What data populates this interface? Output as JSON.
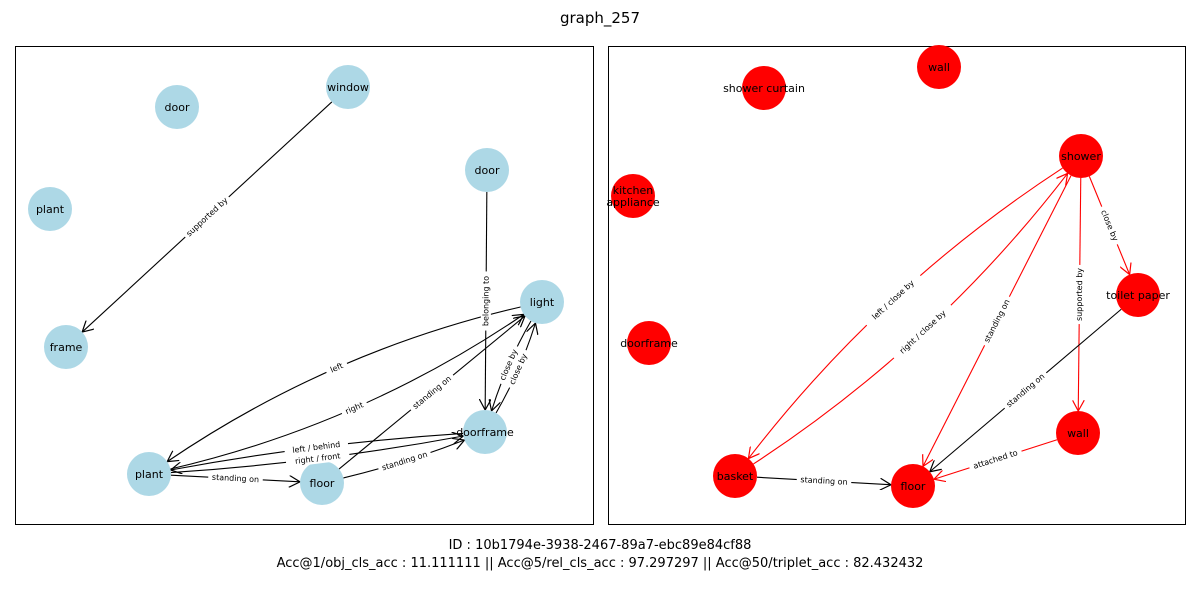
{
  "title": "graph_257",
  "id_line": "ID : 10b1794e-3938-2467-89a7-ebc89e84cf88",
  "acc_line": "Acc@1/obj_cls_acc : 11.111111 || Acc@5/rel_cls_acc : 97.297297 || Acc@50/triplet_acc : 82.432432",
  "colors": {
    "left_node": "#add8e6",
    "right_node": "#ff0000",
    "left_edge": "#000000",
    "right_edge": "#ff0000",
    "right_edge_alt": "#000000"
  },
  "panels": [
    {
      "nodes": [
        {
          "id": "l_door1",
          "label": "door"
        },
        {
          "id": "l_window",
          "label": "window"
        },
        {
          "id": "l_door2",
          "label": "door"
        },
        {
          "id": "l_plant1",
          "label": "plant"
        },
        {
          "id": "l_light",
          "label": "light"
        },
        {
          "id": "l_frame",
          "label": "frame"
        },
        {
          "id": "l_doorframe",
          "label": "doorframe"
        },
        {
          "id": "l_plant2",
          "label": "plant"
        },
        {
          "id": "l_floor",
          "label": "floor"
        }
      ],
      "edges": [
        {
          "from": "l_window",
          "to": "l_frame",
          "label": "supported by"
        },
        {
          "from": "l_door2",
          "to": "l_doorframe",
          "label": "belonging to"
        },
        {
          "from": "l_light",
          "to": "l_plant2",
          "label": "left"
        },
        {
          "from": "l_plant2",
          "to": "l_light",
          "label": "right"
        },
        {
          "from": "l_floor",
          "to": "l_light",
          "label": "standing on"
        },
        {
          "from": "l_doorframe",
          "to": "l_light",
          "label": "close by"
        },
        {
          "from": "l_light",
          "to": "l_doorframe",
          "label": "close by"
        },
        {
          "from": "l_doorframe",
          "to": "l_plant2",
          "label": "left / behind"
        },
        {
          "from": "l_plant2",
          "to": "l_doorframe",
          "label": "right / front"
        },
        {
          "from": "l_floor",
          "to": "l_doorframe",
          "label": "standing on"
        },
        {
          "from": "l_plant2",
          "to": "l_floor",
          "label": "standing on"
        }
      ]
    },
    {
      "nodes": [
        {
          "id": "r_wall1",
          "label": "wall"
        },
        {
          "id": "r_curtain",
          "label": "shower curtain"
        },
        {
          "id": "r_shower",
          "label": "shower"
        },
        {
          "id": "r_kitchen",
          "label": "kitchen\nappliance"
        },
        {
          "id": "r_toilet",
          "label": "toilet paper"
        },
        {
          "id": "r_doorframe",
          "label": "doorframe"
        },
        {
          "id": "r_wall2",
          "label": "wall"
        },
        {
          "id": "r_basket",
          "label": "basket"
        },
        {
          "id": "r_floor",
          "label": "floor"
        }
      ],
      "edges": [
        {
          "from": "r_shower",
          "to": "r_basket",
          "label": "left / close by"
        },
        {
          "from": "r_basket",
          "to": "r_shower",
          "label": "right / close by"
        },
        {
          "from": "r_shower",
          "to": "r_floor",
          "label": "standing on"
        },
        {
          "from": "r_shower",
          "to": "r_wall2",
          "label": "supported by"
        },
        {
          "from": "r_shower",
          "to": "r_toilet",
          "label": "close by"
        },
        {
          "from": "r_toilet",
          "to": "r_floor",
          "label": "standing on"
        },
        {
          "from": "r_wall2",
          "to": "r_floor",
          "label": "attached to"
        },
        {
          "from": "r_basket",
          "to": "r_floor",
          "label": "standing on"
        }
      ]
    }
  ]
}
